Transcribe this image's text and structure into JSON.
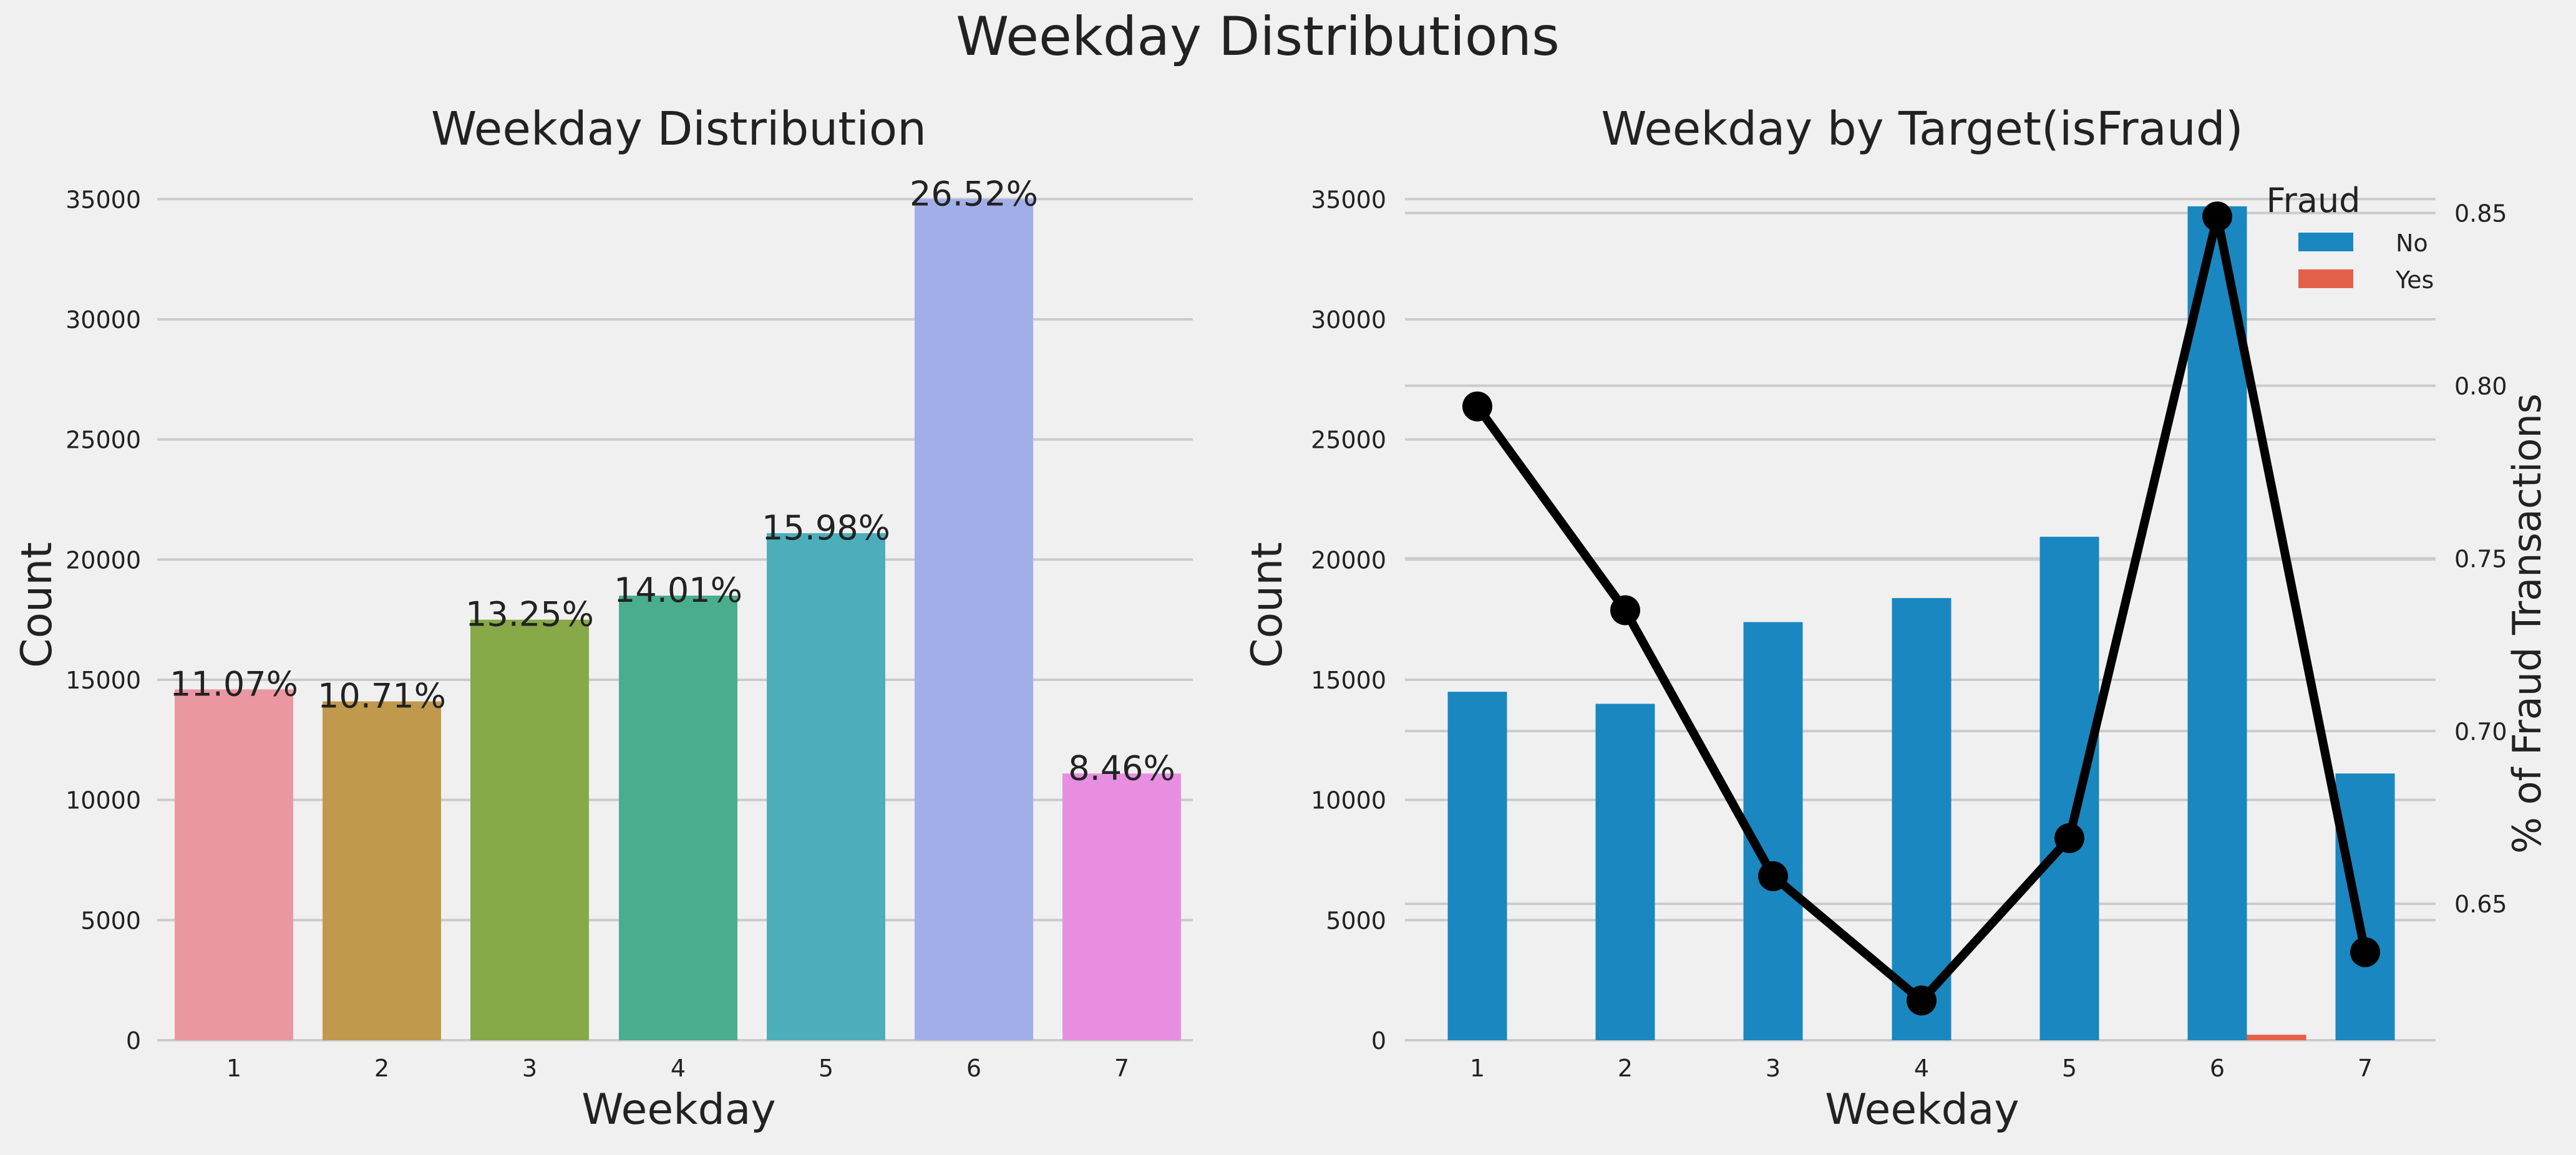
{
  "figure": {
    "suptitle": "Weekday Distributions",
    "background": "#f0f0f0",
    "grid_color": "#cbcbcb"
  },
  "chart_data": [
    {
      "type": "bar",
      "title": "Weekday Distribution",
      "xlabel": "Weekday",
      "ylabel": "Count",
      "categories": [
        "1",
        "2",
        "3",
        "4",
        "5",
        "6",
        "7"
      ],
      "values": [
        14600,
        14100,
        17500,
        18500,
        21100,
        35000,
        11100
      ],
      "data_labels": [
        "11.07%",
        "10.71%",
        "13.25%",
        "14.01%",
        "15.98%",
        "26.52%",
        "8.46%"
      ],
      "colors": [
        "#ea97a2",
        "#c0994c",
        "#87a947",
        "#4aad8d",
        "#4daebb",
        "#a1aee8",
        "#e88ee0"
      ],
      "ylim": [
        0,
        35500
      ],
      "yticks": [
        0,
        5000,
        10000,
        15000,
        20000,
        25000,
        30000,
        35000
      ],
      "grid": true
    },
    {
      "type": "bar",
      "title": "Weekday by Target(isFraud)",
      "xlabel": "Weekday",
      "ylabel": "Count",
      "y2label": "% of Fraud Transactions",
      "categories": [
        "1",
        "2",
        "3",
        "4",
        "5",
        "6",
        "7"
      ],
      "ylim": [
        0,
        35500
      ],
      "yticks": [
        0,
        5000,
        10000,
        15000,
        20000,
        25000,
        30000,
        35000
      ],
      "y2lim": [
        0.6105,
        0.8575
      ],
      "y2ticks": [
        0.65,
        0.7,
        0.75,
        0.8,
        0.85
      ],
      "series": [
        {
          "name": "No",
          "color": "#1a87c0",
          "values": [
            14500,
            14000,
            17400,
            18400,
            20950,
            34700,
            11100
          ]
        },
        {
          "name": "Yes",
          "color": "#e5604a",
          "values": [
            0,
            0,
            0,
            0,
            0,
            230,
            0
          ]
        }
      ],
      "line": {
        "color": "#000000",
        "values": [
          0.794,
          0.735,
          0.658,
          0.622,
          0.669,
          0.849,
          0.636
        ]
      },
      "legend": {
        "title": "Fraud",
        "position": "top-right"
      },
      "grid": true
    }
  ]
}
